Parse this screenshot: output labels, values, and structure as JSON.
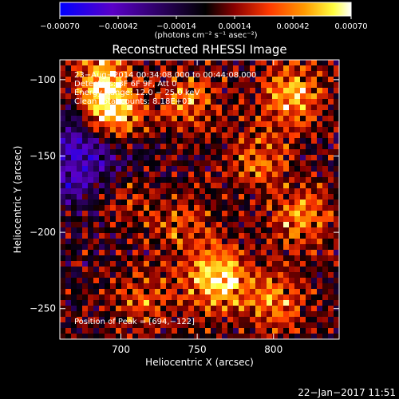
{
  "chart_data": {
    "type": "heatmap",
    "title": "Reconstructed RHESSI Image",
    "xlabel": "Heliocentric X (arcsec)",
    "ylabel": "Heliocentric Y (arcsec)",
    "xlim": [
      660,
      843
    ],
    "ylim": [
      -270,
      -87
    ],
    "x_ticks": [
      700,
      750,
      800
    ],
    "y_ticks": [
      -100,
      -150,
      -200,
      -250
    ],
    "colorbar": {
      "range": [
        -0.0007,
        0.0007
      ],
      "tick_values": [
        -0.0007,
        -0.00042,
        -0.00014,
        0.00014,
        0.00042,
        0.0007
      ],
      "tick_labels": [
        "−0.00070",
        "−0.00042",
        "−0.00014",
        "0.00014",
        "0.00042",
        "0.00070"
      ],
      "units_label": "(photons cm⁻² s⁻¹ asec⁻²)",
      "colors": [
        "#0000ff",
        "#5a00c8",
        "#000000",
        "#8a0000",
        "#ff3a00",
        "#ff9a00",
        "#ffff40",
        "#ffffff"
      ]
    },
    "annotations": {
      "time_range": "23−Aug−2014 00:34:08.000 to 00:44:08.000",
      "detectors": "Detectors: 3F 6F 9F, Att 0",
      "energy": "Energy Range: 12.0 − 25.0 keV",
      "clean": "Clean   Total counts: 8.18E+03",
      "peak": "Position of Peak = [694,−122]"
    },
    "hotspots": [
      {
        "x": 694,
        "y": -122,
        "value": 0.0007
      },
      {
        "x": 688,
        "y": -98,
        "value": 0.00045
      },
      {
        "x": 763,
        "y": -230,
        "value": 0.00065
      },
      {
        "x": 812,
        "y": -110,
        "value": 0.0005
      },
      {
        "x": 790,
        "y": -152,
        "value": 0.00035
      },
      {
        "x": 818,
        "y": -190,
        "value": 0.0004
      },
      {
        "x": 740,
        "y": -195,
        "value": 0.0003
      },
      {
        "x": 715,
        "y": -245,
        "value": 0.0003
      },
      {
        "x": 800,
        "y": -245,
        "value": 0.0004
      },
      {
        "x": 745,
        "y": -115,
        "value": 0.00035
      },
      {
        "x": 700,
        "y": -175,
        "value": 0.00025
      }
    ],
    "negative_region": {
      "x": 676,
      "y": -150,
      "value": -0.0005
    }
  },
  "footer": {
    "timestamp": "22−Jan−2017 11:51"
  }
}
